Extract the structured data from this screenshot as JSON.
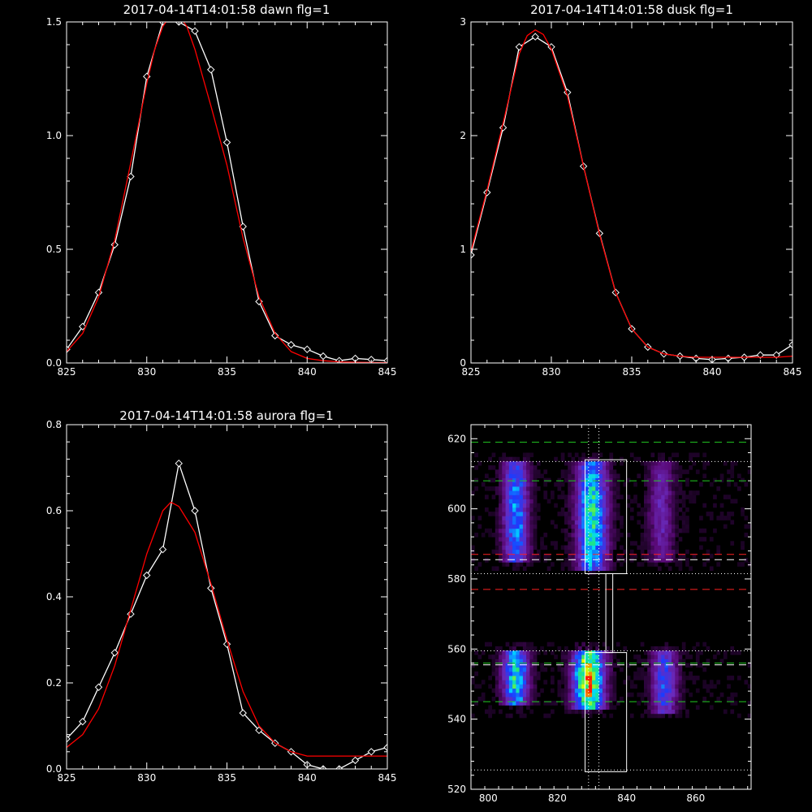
{
  "chart_data": [
    {
      "type": "line",
      "title": "2017-04-14T14:01:58 dawn flg=1",
      "xlim": [
        825,
        845
      ],
      "ylim": [
        0,
        1.5
      ],
      "xticks": [
        825,
        830,
        835,
        840,
        845
      ],
      "yticks": [
        0,
        0.5,
        1.0,
        1.5
      ],
      "xtick_labels": [
        "825",
        "830",
        "835",
        "840",
        "845"
      ],
      "ytick_labels": [
        "0.0",
        "0.5",
        "1.0",
        "1.5"
      ],
      "series": [
        {
          "color": "#ffffff",
          "marker": "diamond",
          "x": [
            825,
            826,
            827,
            828,
            829,
            830,
            831,
            832,
            833,
            834,
            835,
            836,
            837,
            838,
            839,
            840,
            841,
            842,
            843,
            844,
            845
          ],
          "y": [
            0.06,
            0.16,
            0.31,
            0.52,
            0.82,
            1.26,
            1.5,
            1.5,
            1.46,
            1.29,
            0.97,
            0.6,
            0.27,
            0.12,
            0.08,
            0.06,
            0.03,
            0.01,
            0.02,
            0.015,
            0.01
          ]
        },
        {
          "color": "#ff0000",
          "x": [
            825,
            826,
            827,
            828,
            829,
            830,
            830.5,
            831,
            831.5,
            832,
            832.5,
            833,
            834,
            835,
            836,
            837,
            838,
            839,
            840,
            841,
            842,
            843,
            844,
            845
          ],
          "y": [
            0.05,
            0.13,
            0.29,
            0.54,
            0.88,
            1.23,
            1.38,
            1.48,
            1.53,
            1.53,
            1.48,
            1.38,
            1.13,
            0.87,
            0.55,
            0.29,
            0.13,
            0.05,
            0.02,
            0.01,
            0.005,
            0.003,
            0.002,
            0.001
          ]
        }
      ]
    },
    {
      "type": "line",
      "title": "2017-04-14T14:01:58 dusk flg=1",
      "xlim": [
        825,
        845
      ],
      "ylim": [
        0,
        3
      ],
      "xticks": [
        825,
        830,
        835,
        840,
        845
      ],
      "yticks": [
        0,
        1,
        2,
        3
      ],
      "xtick_labels": [
        "825",
        "830",
        "835",
        "840",
        "845"
      ],
      "ytick_labels": [
        "0",
        "1",
        "2",
        "3"
      ],
      "series": [
        {
          "color": "#ffffff",
          "marker": "diamond",
          "x": [
            825,
            826,
            827,
            828,
            829,
            830,
            831,
            832,
            833,
            834,
            835,
            836,
            837,
            838,
            839,
            840,
            841,
            842,
            843,
            844,
            845
          ],
          "y": [
            0.95,
            1.5,
            2.07,
            2.78,
            2.87,
            2.78,
            2.38,
            1.73,
            1.14,
            0.62,
            0.3,
            0.14,
            0.08,
            0.06,
            0.04,
            0.03,
            0.04,
            0.05,
            0.07,
            0.07,
            0.16
          ]
        },
        {
          "color": "#ff0000",
          "x": [
            825,
            826,
            827,
            828,
            828.5,
            829,
            829.5,
            830,
            831,
            832,
            833,
            834,
            835,
            836,
            837,
            838,
            839,
            840,
            841,
            842,
            843,
            844,
            845
          ],
          "y": [
            0.98,
            1.52,
            2.11,
            2.72,
            2.88,
            2.93,
            2.89,
            2.76,
            2.35,
            1.73,
            1.13,
            0.62,
            0.3,
            0.14,
            0.08,
            0.06,
            0.05,
            0.05,
            0.05,
            0.05,
            0.05,
            0.05,
            0.06
          ]
        }
      ]
    },
    {
      "type": "line",
      "title": "2017-04-14T14:01:58 aurora flg=1",
      "xlim": [
        825,
        845
      ],
      "ylim": [
        0,
        0.8
      ],
      "xticks": [
        825,
        830,
        835,
        840,
        845
      ],
      "yticks": [
        0,
        0.2,
        0.4,
        0.6,
        0.8
      ],
      "xtick_labels": [
        "825",
        "830",
        "835",
        "840",
        "845"
      ],
      "ytick_labels": [
        "0.0",
        "0.2",
        "0.4",
        "0.6",
        "0.8"
      ],
      "series": [
        {
          "color": "#ffffff",
          "marker": "diamond",
          "x": [
            825,
            826,
            827,
            828,
            829,
            830,
            831,
            832,
            833,
            834,
            835,
            836,
            837,
            838,
            839,
            840,
            841,
            842,
            843,
            844,
            845
          ],
          "y": [
            0.07,
            0.11,
            0.19,
            0.27,
            0.36,
            0.45,
            0.51,
            0.71,
            0.6,
            0.42,
            0.29,
            0.13,
            0.09,
            0.06,
            0.04,
            0.01,
            0.0,
            0.0,
            0.02,
            0.04,
            0.05
          ]
        },
        {
          "color": "#ff0000",
          "x": [
            825,
            826,
            827,
            828,
            829,
            830,
            831,
            831.5,
            832,
            833,
            834,
            835,
            836,
            837,
            838,
            839,
            840,
            841,
            842,
            843,
            844,
            845
          ],
          "y": [
            0.05,
            0.08,
            0.14,
            0.24,
            0.37,
            0.5,
            0.6,
            0.62,
            0.61,
            0.55,
            0.43,
            0.3,
            0.18,
            0.1,
            0.06,
            0.04,
            0.03,
            0.03,
            0.03,
            0.03,
            0.03,
            0.03
          ]
        }
      ]
    },
    {
      "type": "heatmap",
      "xlim": [
        795,
        876
      ],
      "ylim": [
        520,
        624
      ],
      "xticks": [
        800,
        820,
        840,
        860
      ],
      "yticks": [
        520,
        540,
        560,
        580,
        600,
        620
      ],
      "xtick_labels": [
        "800",
        "820",
        "840",
        "860"
      ],
      "ytick_labels": [
        "520",
        "540",
        "560",
        "580",
        "600",
        "620"
      ],
      "colormap": [
        "#000000",
        "#5a0a78",
        "#6a2bbd",
        "#1a3cff",
        "#00d9ff",
        "#22e67a",
        "#e6ff00",
        "#ff1a00"
      ],
      "bands": [
        {
          "x_center": 808,
          "x_width": 5,
          "y_range": [
            585,
            614
          ],
          "intensity": 0.52
        },
        {
          "x_center": 830,
          "x_width": 6,
          "y_range": [
            582,
            614
          ],
          "intensity": 0.68
        },
        {
          "x_center": 850,
          "x_width": 5,
          "y_range": [
            585,
            614
          ],
          "intensity": 0.24
        },
        {
          "x_center": 808,
          "x_width": 5,
          "y_range": [
            544,
            560
          ],
          "intensity": 0.66
        },
        {
          "x_center": 829,
          "x_width": 6,
          "y_range": [
            543,
            560
          ],
          "intensity": 0.97
        },
        {
          "x_center": 851,
          "x_width": 5,
          "y_range": [
            542,
            560
          ],
          "intensity": 0.42
        }
      ],
      "boxes": [
        {
          "x": [
            828,
            840
          ],
          "y": [
            581.5,
            614
          ],
          "color": "#ffffff"
        },
        {
          "x": [
            834,
            836
          ],
          "y": [
            559,
            581.5
          ],
          "color": "#ffffff"
        },
        {
          "x": [
            828,
            840
          ],
          "y": [
            525,
            559
          ],
          "color": "#ffffff"
        }
      ],
      "hlines": [
        {
          "y": 619,
          "color": "#22cc22",
          "style": "dash"
        },
        {
          "y": 608,
          "color": "#22cc22",
          "style": "dash"
        },
        {
          "y": 556,
          "color": "#22cc22",
          "style": "dash"
        },
        {
          "y": 545,
          "color": "#22cc22",
          "style": "dash"
        },
        {
          "y": 587,
          "color": "#ff2222",
          "style": "dash"
        },
        {
          "y": 577,
          "color": "#ff2222",
          "style": "dash"
        },
        {
          "y": 585.5,
          "color": "#ffffff",
          "style": "dash"
        },
        {
          "y": 555.5,
          "color": "#ffffff",
          "style": "dash"
        },
        {
          "y": 613.5,
          "color": "#ffffff",
          "style": "dot"
        },
        {
          "y": 581.5,
          "color": "#ffffff",
          "style": "dot"
        },
        {
          "y": 559.5,
          "color": "#ffffff",
          "style": "dot"
        },
        {
          "y": 525.5,
          "color": "#ffffff",
          "style": "dot"
        }
      ],
      "vlines": [
        {
          "x": 829,
          "color": "#ffffff",
          "style": "dot"
        },
        {
          "x": 832,
          "color": "#ffffff",
          "style": "dot"
        }
      ]
    }
  ]
}
